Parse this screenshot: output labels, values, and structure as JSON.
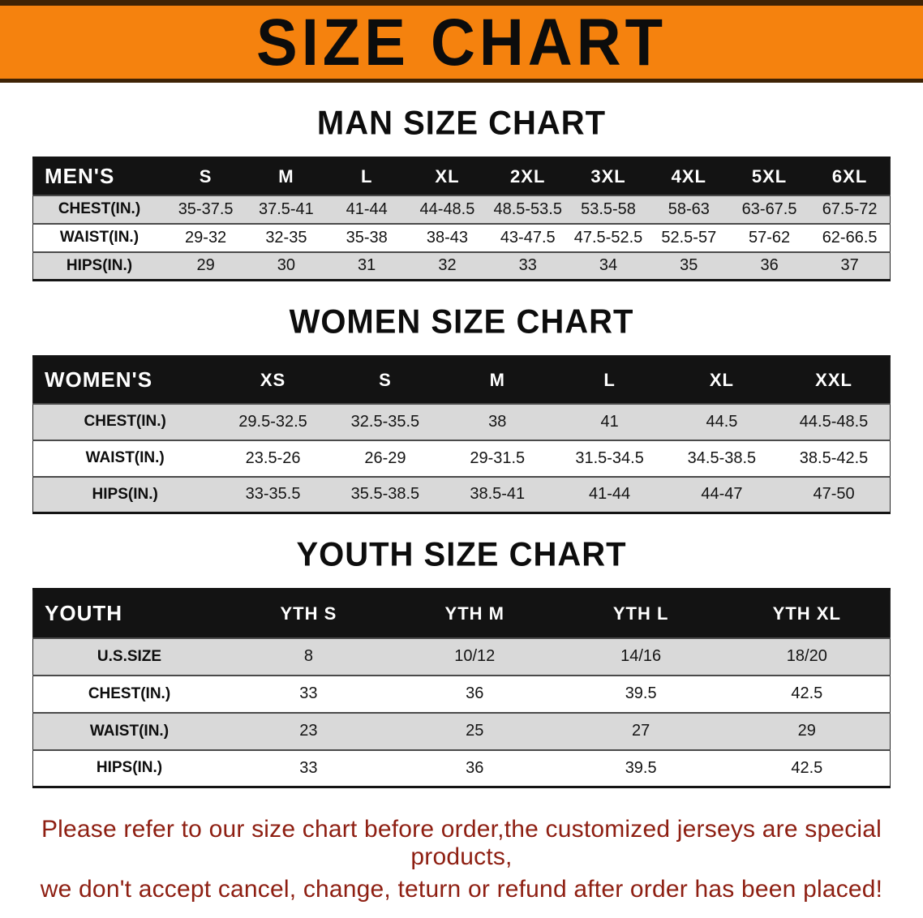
{
  "banner": {
    "title": "SIZE CHART",
    "background": "#f5820e",
    "border_color": "#3f2305"
  },
  "sections": [
    {
      "heading": "MAN SIZE CHART",
      "table": {
        "corner": "MEN'S",
        "sizes": [
          "S",
          "M",
          "L",
          "XL",
          "2XL",
          "3XL",
          "4XL",
          "5XL",
          "6XL"
        ],
        "rows": [
          {
            "label": "CHEST(IN.)",
            "values": [
              "35-37.5",
              "37.5-41",
              "41-44",
              "44-48.5",
              "48.5-53.5",
              "53.5-58",
              "58-63",
              "63-67.5",
              "67.5-72"
            ]
          },
          {
            "label": "WAIST(IN.)",
            "values": [
              "29-32",
              "32-35",
              "35-38",
              "38-43",
              "43-47.5",
              "47.5-52.5",
              "52.5-57",
              "57-62",
              "62-66.5"
            ]
          },
          {
            "label": "HIPS(IN.)",
            "values": [
              "29",
              "30",
              "31",
              "32",
              "33",
              "34",
              "35",
              "36",
              "37"
            ]
          }
        ]
      }
    },
    {
      "heading": "WOMEN SIZE CHART",
      "table": {
        "corner": "WOMEN'S",
        "sizes": [
          "XS",
          "S",
          "M",
          "L",
          "XL",
          "XXL"
        ],
        "rows": [
          {
            "label": "CHEST(IN.)",
            "values": [
              "29.5-32.5",
              "32.5-35.5",
              "38",
              "41",
              "44.5",
              "44.5-48.5"
            ]
          },
          {
            "label": "WAIST(IN.)",
            "values": [
              "23.5-26",
              "26-29",
              "29-31.5",
              "31.5-34.5",
              "34.5-38.5",
              "38.5-42.5"
            ]
          },
          {
            "label": "HIPS(IN.)",
            "values": [
              "33-35.5",
              "35.5-38.5",
              "38.5-41",
              "41-44",
              "44-47",
              "47-50"
            ]
          }
        ]
      }
    },
    {
      "heading": "YOUTH SIZE CHART",
      "table": {
        "corner": "YOUTH",
        "sizes": [
          "YTH S",
          "YTH M",
          "YTH L",
          "YTH XL"
        ],
        "rows": [
          {
            "label": "U.S.SIZE",
            "values": [
              "8",
              "10/12",
              "14/16",
              "18/20"
            ]
          },
          {
            "label": "CHEST(IN.)",
            "values": [
              "33",
              "36",
              "39.5",
              "42.5"
            ]
          },
          {
            "label": "WAIST(IN.)",
            "values": [
              "23",
              "25",
              "27",
              "29"
            ]
          },
          {
            "label": "HIPS(IN.)",
            "values": [
              "33",
              "36",
              "39.5",
              "42.5"
            ]
          }
        ]
      }
    }
  ],
  "footer": {
    "lines": [
      "Please refer to our size chart before order,the customized jerseys are special products,",
      "we don't accept cancel, change, teturn or refund after order has been placed!"
    ],
    "color": "#8e1f12"
  }
}
